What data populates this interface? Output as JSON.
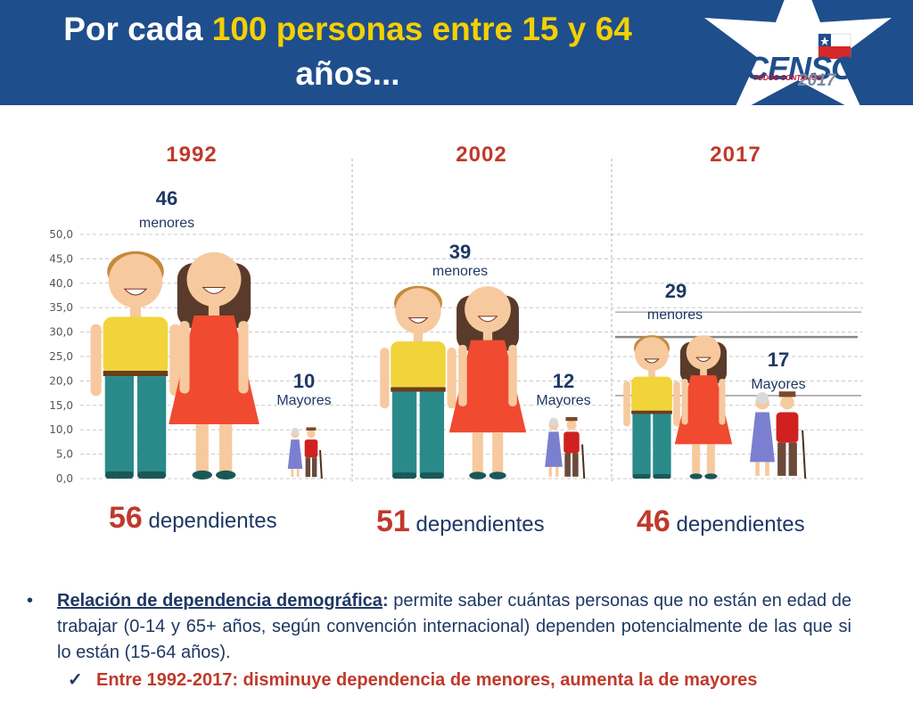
{
  "header": {
    "title_part1": "Por cada ",
    "title_highlight": "100 personas entre 15 y 64",
    "title_part2": "años...",
    "logo_text": "CENSO",
    "logo_tagline": "TODOS CONTAMOS",
    "logo_year": "2017"
  },
  "chart_data": {
    "type": "bar",
    "title": "",
    "ylim": [
      0,
      50
    ],
    "ytick_labels": [
      "0,0",
      "5,0",
      "10,0",
      "15,0",
      "20,0",
      "25,0",
      "30,0",
      "35,0",
      "40,0",
      "45,0",
      "50,0"
    ],
    "categories": [
      "1992",
      "2002",
      "2017"
    ],
    "series": [
      {
        "name": "menores",
        "values": [
          46,
          39,
          29
        ]
      },
      {
        "name": "Mayores",
        "values": [
          10,
          12,
          17
        ]
      }
    ],
    "value_labels": {
      "menores": [
        "46",
        "39",
        "29"
      ],
      "Mayores": [
        "10",
        "12",
        "17"
      ]
    },
    "totals": [
      "56",
      "51",
      "46"
    ],
    "totals_label": "dependientes",
    "grid": true
  },
  "notes": {
    "bullet_symbol": "•",
    "term": "Relación de dependencia demográfica",
    "term_colon": ":",
    "definition": " permite saber cuántas personas que no están en edad de trabajar (0-14 y 65+ años, según convención internacional) dependen potencialmente de las que si lo están (15-64 años).",
    "check_symbol": "✓",
    "conclusion": "Entre 1992-2017: disminuye dependencia de menores, aumenta la de mayores"
  },
  "colors": {
    "header_bg": "#1f4e8c",
    "title_highlight": "#f5d000",
    "year": "#c0392b",
    "label": "#1f3864",
    "child_shirt": "#f0d43a",
    "child_pants": "#2a8a8a",
    "girl_dress": "#f04a30",
    "hair": "#5a3a2a",
    "skin": "#f7c99e",
    "elder_dress": "#7a7fd0",
    "elder_shirt": "#d02020"
  },
  "icons": [
    "flag-icon",
    "star-icon",
    "people-icon"
  ]
}
